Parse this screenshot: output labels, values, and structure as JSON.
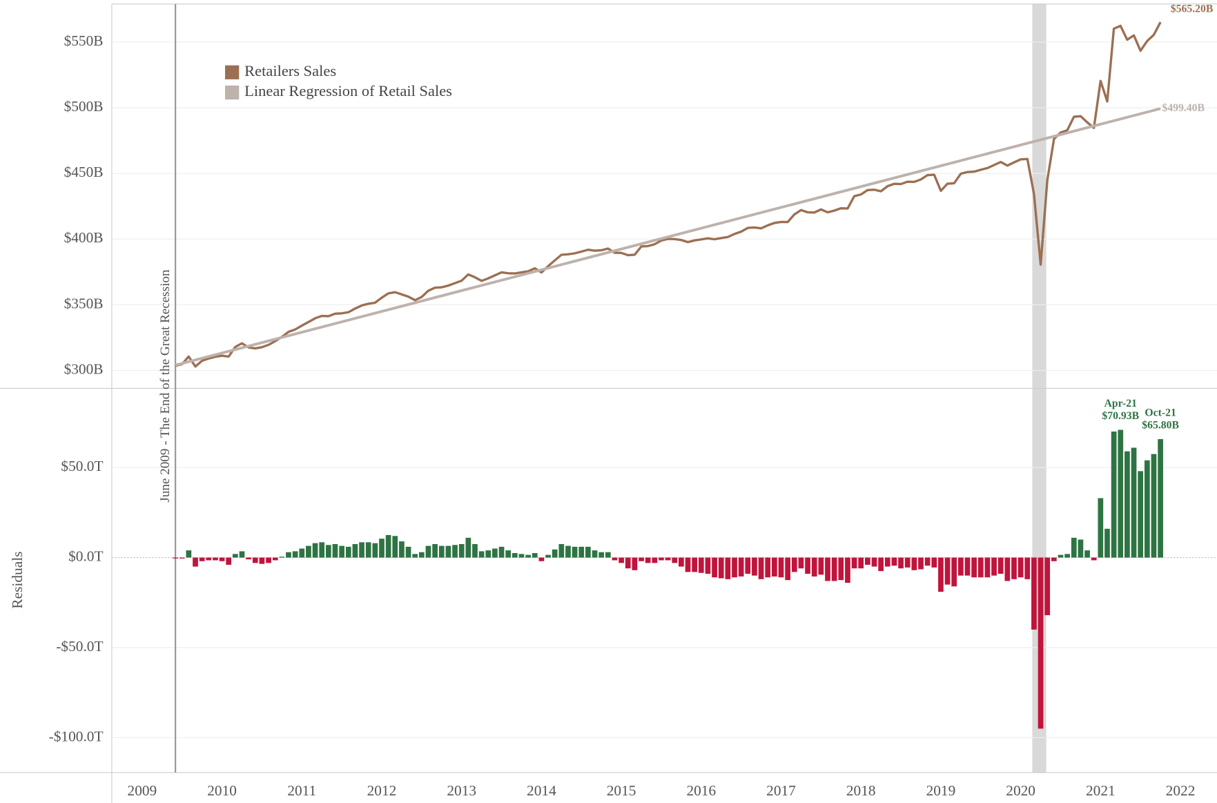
{
  "chart_data": [
    {
      "type": "line",
      "annotation": "June 2009 - The End of the Great Recession",
      "xlim": [
        2008.62,
        2022.38
      ],
      "ylim": [
        286.4,
        579
      ],
      "yticks": [
        {
          "value": 300,
          "label": "$300B"
        },
        {
          "value": 350,
          "label": "$350B"
        },
        {
          "value": 400,
          "label": "$400B"
        },
        {
          "value": 450,
          "label": "$450B"
        },
        {
          "value": 500,
          "label": "$500B"
        },
        {
          "value": 550,
          "label": "$550B"
        }
      ],
      "grid": true,
      "legend": "top-left",
      "series": [
        {
          "name": "Retailers Sales",
          "color": "#9c6f52",
          "end_label": "$565.20B",
          "x": [
            "2009-06",
            "2009-07",
            "2009-08",
            "2009-09",
            "2009-10",
            "2009-11",
            "2009-12",
            "2010-01",
            "2010-02",
            "2010-03",
            "2010-04",
            "2010-05",
            "2010-06",
            "2010-07",
            "2010-08",
            "2010-09",
            "2010-10",
            "2010-11",
            "2010-12",
            "2011-01",
            "2011-02",
            "2011-03",
            "2011-04",
            "2011-05",
            "2011-06",
            "2011-07",
            "2011-08",
            "2011-09",
            "2011-10",
            "2011-11",
            "2011-12",
            "2012-01",
            "2012-02",
            "2012-03",
            "2012-04",
            "2012-05",
            "2012-06",
            "2012-07",
            "2012-08",
            "2012-09",
            "2012-10",
            "2012-11",
            "2012-12",
            "2013-01",
            "2013-02",
            "2013-03",
            "2013-04",
            "2013-05",
            "2013-06",
            "2013-07",
            "2013-08",
            "2013-09",
            "2013-10",
            "2013-11",
            "2013-12",
            "2014-01",
            "2014-02",
            "2014-03",
            "2014-04",
            "2014-05",
            "2014-06",
            "2014-07",
            "2014-08",
            "2014-09",
            "2014-10",
            "2014-11",
            "2014-12",
            "2015-01",
            "2015-02",
            "2015-03",
            "2015-04",
            "2015-05",
            "2015-06",
            "2015-07",
            "2015-08",
            "2015-09",
            "2015-10",
            "2015-11",
            "2015-12",
            "2016-01",
            "2016-02",
            "2016-03",
            "2016-04",
            "2016-05",
            "2016-06",
            "2016-07",
            "2016-08",
            "2016-09",
            "2016-10",
            "2016-11",
            "2016-12",
            "2017-01",
            "2017-02",
            "2017-03",
            "2017-04",
            "2017-05",
            "2017-06",
            "2017-07",
            "2017-08",
            "2017-09",
            "2017-10",
            "2017-11",
            "2017-12",
            "2018-01",
            "2018-02",
            "2018-03",
            "2018-04",
            "2018-05",
            "2018-06",
            "2018-07",
            "2018-08",
            "2018-09",
            "2018-10",
            "2018-11",
            "2018-12",
            "2019-01",
            "2019-02",
            "2019-03",
            "2019-04",
            "2019-05",
            "2019-06",
            "2019-07",
            "2019-08",
            "2019-09",
            "2019-10",
            "2019-11",
            "2019-12",
            "2020-01",
            "2020-02",
            "2020-03",
            "2020-04",
            "2020-05",
            "2020-06",
            "2020-07",
            "2020-08",
            "2020-09",
            "2020-10",
            "2020-11",
            "2020-12",
            "2021-01",
            "2021-02",
            "2021-03",
            "2021-04",
            "2021-05",
            "2021-06",
            "2021-07",
            "2021-08",
            "2021-09",
            "2021-10"
          ],
          "values": [
            303.5,
            304.8,
            310.6,
            303.0,
            307.3,
            309.1,
            310.4,
            311.2,
            310.6,
            317.9,
            320.7,
            317.5,
            316.8,
            317.7,
            319.5,
            322.3,
            325.6,
            329.4,
            331.2,
            334.1,
            336.9,
            339.7,
            341.5,
            341.3,
            343.2,
            343.5,
            344.3,
            347.1,
            349.5,
            350.8,
            351.6,
            355.4,
            358.7,
            359.6,
            357.9,
            356.2,
            353.5,
            355.9,
            360.7,
            363.0,
            363.3,
            364.6,
            366.5,
            368.3,
            373.1,
            370.9,
            368.2,
            370.1,
            372.4,
            374.7,
            374.0,
            373.8,
            374.7,
            375.5,
            377.8,
            374.6,
            379.4,
            383.8,
            388.1,
            388.4,
            389.2,
            390.5,
            391.9,
            391.2,
            391.5,
            392.8,
            389.6,
            389.5,
            387.8,
            388.1,
            394.4,
            394.7,
            396.1,
            398.9,
            400.2,
            400.0,
            399.3,
            397.7,
            399.0,
            399.8,
            400.6,
            399.9,
            400.8,
            401.6,
            403.9,
            405.7,
            408.5,
            408.9,
            408.2,
            410.5,
            412.3,
            413.1,
            413.0,
            418.8,
            422.1,
            420.4,
            420.2,
            422.6,
            420.4,
            421.7,
            423.5,
            423.3,
            432.7,
            434.0,
            437.3,
            437.6,
            436.4,
            440.3,
            442.1,
            441.9,
            443.7,
            443.6,
            445.4,
            448.7,
            449.0,
            436.8,
            442.2,
            442.5,
            449.8,
            451.1,
            451.4,
            452.8,
            454.1,
            456.4,
            458.7,
            456.0,
            458.4,
            460.7,
            461.0,
            434.3,
            380.6,
            445.0,
            476.3,
            481.1,
            482.9,
            493.2,
            493.6,
            488.9,
            484.7,
            520.5,
            504.8,
            560.2,
            562.4,
            551.8,
            555.1,
            543.4,
            550.8,
            555.6,
            565.2
          ]
        },
        {
          "name": "Linear Regression of Retail Sales",
          "color": "#bdb2ac",
          "end_label": "$499.40B",
          "x": [
            "2009-06",
            "2021-10"
          ],
          "values": [
            304,
            499.4
          ]
        }
      ]
    },
    {
      "type": "bar",
      "y_label": "Residuals",
      "xlim": [
        2008.62,
        2022.38
      ],
      "xticks": [
        2009,
        2010,
        2011,
        2012,
        2013,
        2014,
        2015,
        2016,
        2017,
        2018,
        2019,
        2020,
        2021,
        2022
      ],
      "ylim": [
        -119.4,
        94
      ],
      "yticks": [
        {
          "value": -100,
          "label": "-$100.0T"
        },
        {
          "value": -50,
          "label": "-$50.0T"
        },
        {
          "value": 0,
          "label": "$0.0T"
        },
        {
          "value": 50,
          "label": "$50.0T"
        }
      ],
      "grid": true,
      "positive_color": "#2e7443",
      "negative_color": "#c0143c",
      "x": [
        "2009-06",
        "2009-07",
        "2009-08",
        "2009-09",
        "2009-10",
        "2009-11",
        "2009-12",
        "2010-01",
        "2010-02",
        "2010-03",
        "2010-04",
        "2010-05",
        "2010-06",
        "2010-07",
        "2010-08",
        "2010-09",
        "2010-10",
        "2010-11",
        "2010-12",
        "2011-01",
        "2011-02",
        "2011-03",
        "2011-04",
        "2011-05",
        "2011-06",
        "2011-07",
        "2011-08",
        "2011-09",
        "2011-10",
        "2011-11",
        "2011-12",
        "2012-01",
        "2012-02",
        "2012-03",
        "2012-04",
        "2012-05",
        "2012-06",
        "2012-07",
        "2012-08",
        "2012-09",
        "2012-10",
        "2012-11",
        "2012-12",
        "2013-01",
        "2013-02",
        "2013-03",
        "2013-04",
        "2013-05",
        "2013-06",
        "2013-07",
        "2013-08",
        "2013-09",
        "2013-10",
        "2013-11",
        "2013-12",
        "2014-01",
        "2014-02",
        "2014-03",
        "2014-04",
        "2014-05",
        "2014-06",
        "2014-07",
        "2014-08",
        "2014-09",
        "2014-10",
        "2014-11",
        "2014-12",
        "2015-01",
        "2015-02",
        "2015-03",
        "2015-04",
        "2015-05",
        "2015-06",
        "2015-07",
        "2015-08",
        "2015-09",
        "2015-10",
        "2015-11",
        "2015-12",
        "2016-01",
        "2016-02",
        "2016-03",
        "2016-04",
        "2016-05",
        "2016-06",
        "2016-07",
        "2016-08",
        "2016-09",
        "2016-10",
        "2016-11",
        "2016-12",
        "2017-01",
        "2017-02",
        "2017-03",
        "2017-04",
        "2017-05",
        "2017-06",
        "2017-07",
        "2017-08",
        "2017-09",
        "2017-10",
        "2017-11",
        "2017-12",
        "2018-01",
        "2018-02",
        "2018-03",
        "2018-04",
        "2018-05",
        "2018-06",
        "2018-07",
        "2018-08",
        "2018-09",
        "2018-10",
        "2018-11",
        "2018-12",
        "2019-01",
        "2019-02",
        "2019-03",
        "2019-04",
        "2019-05",
        "2019-06",
        "2019-07",
        "2019-08",
        "2019-09",
        "2019-10",
        "2019-11",
        "2019-12",
        "2020-01",
        "2020-02",
        "2020-03",
        "2020-04",
        "2020-05",
        "2020-06",
        "2020-07",
        "2020-08",
        "2020-09",
        "2020-10",
        "2020-11",
        "2020-12",
        "2021-01",
        "2021-02",
        "2021-03",
        "2021-04",
        "2021-05",
        "2021-06",
        "2021-07",
        "2021-08",
        "2021-09",
        "2021-10"
      ],
      "values": [
        -0.5,
        -0.5,
        4,
        -5,
        -2,
        -1.5,
        -1.5,
        -2,
        -4,
        2,
        3.5,
        -1,
        -3,
        -3.5,
        -3,
        -1.5,
        0.5,
        3,
        3.5,
        5,
        6.5,
        8,
        8.5,
        7,
        7.5,
        6.5,
        6,
        7.5,
        8.5,
        8.5,
        8,
        10.5,
        12.5,
        12,
        9,
        6,
        2,
        3,
        6.5,
        7.5,
        6.5,
        6.5,
        7,
        7.5,
        11,
        7.5,
        3.5,
        4,
        5,
        6,
        4,
        2.5,
        2,
        1.5,
        2.5,
        -2,
        1.5,
        4.5,
        7.5,
        6.5,
        6,
        6,
        6,
        4,
        3,
        3,
        -1.5,
        -3,
        -6,
        -7,
        -2,
        -3,
        -3,
        -1.5,
        -1.5,
        -3,
        -5,
        -8,
        -8,
        -8.5,
        -9,
        -11,
        -11.5,
        -12,
        -11,
        -10.5,
        -9,
        -10,
        -12,
        -11,
        -10.5,
        -11,
        -12.5,
        -8,
        -6,
        -9,
        -10.5,
        -9.5,
        -13,
        -13,
        -12.5,
        -14,
        -6,
        -6,
        -4,
        -5,
        -7.5,
        -5,
        -4.5,
        -6,
        -5.5,
        -7,
        -6.5,
        -4.5,
        -5.5,
        -19,
        -15,
        -16,
        -10,
        -10,
        -11,
        -11,
        -11,
        -10,
        -9,
        -13,
        -12,
        -11,
        -12,
        -40,
        -95,
        -32,
        -2,
        1.5,
        2,
        11,
        10,
        4,
        -1.5,
        33,
        16,
        70,
        70.93,
        59,
        61,
        48,
        54,
        57.5,
        65.8
      ],
      "annotations": [
        {
          "x": "2021-04",
          "label": "Apr-21",
          "value_label": "$70.93B"
        },
        {
          "x": "2021-10",
          "label": "Oct-21",
          "value_label": "$65.80B"
        }
      ]
    }
  ]
}
